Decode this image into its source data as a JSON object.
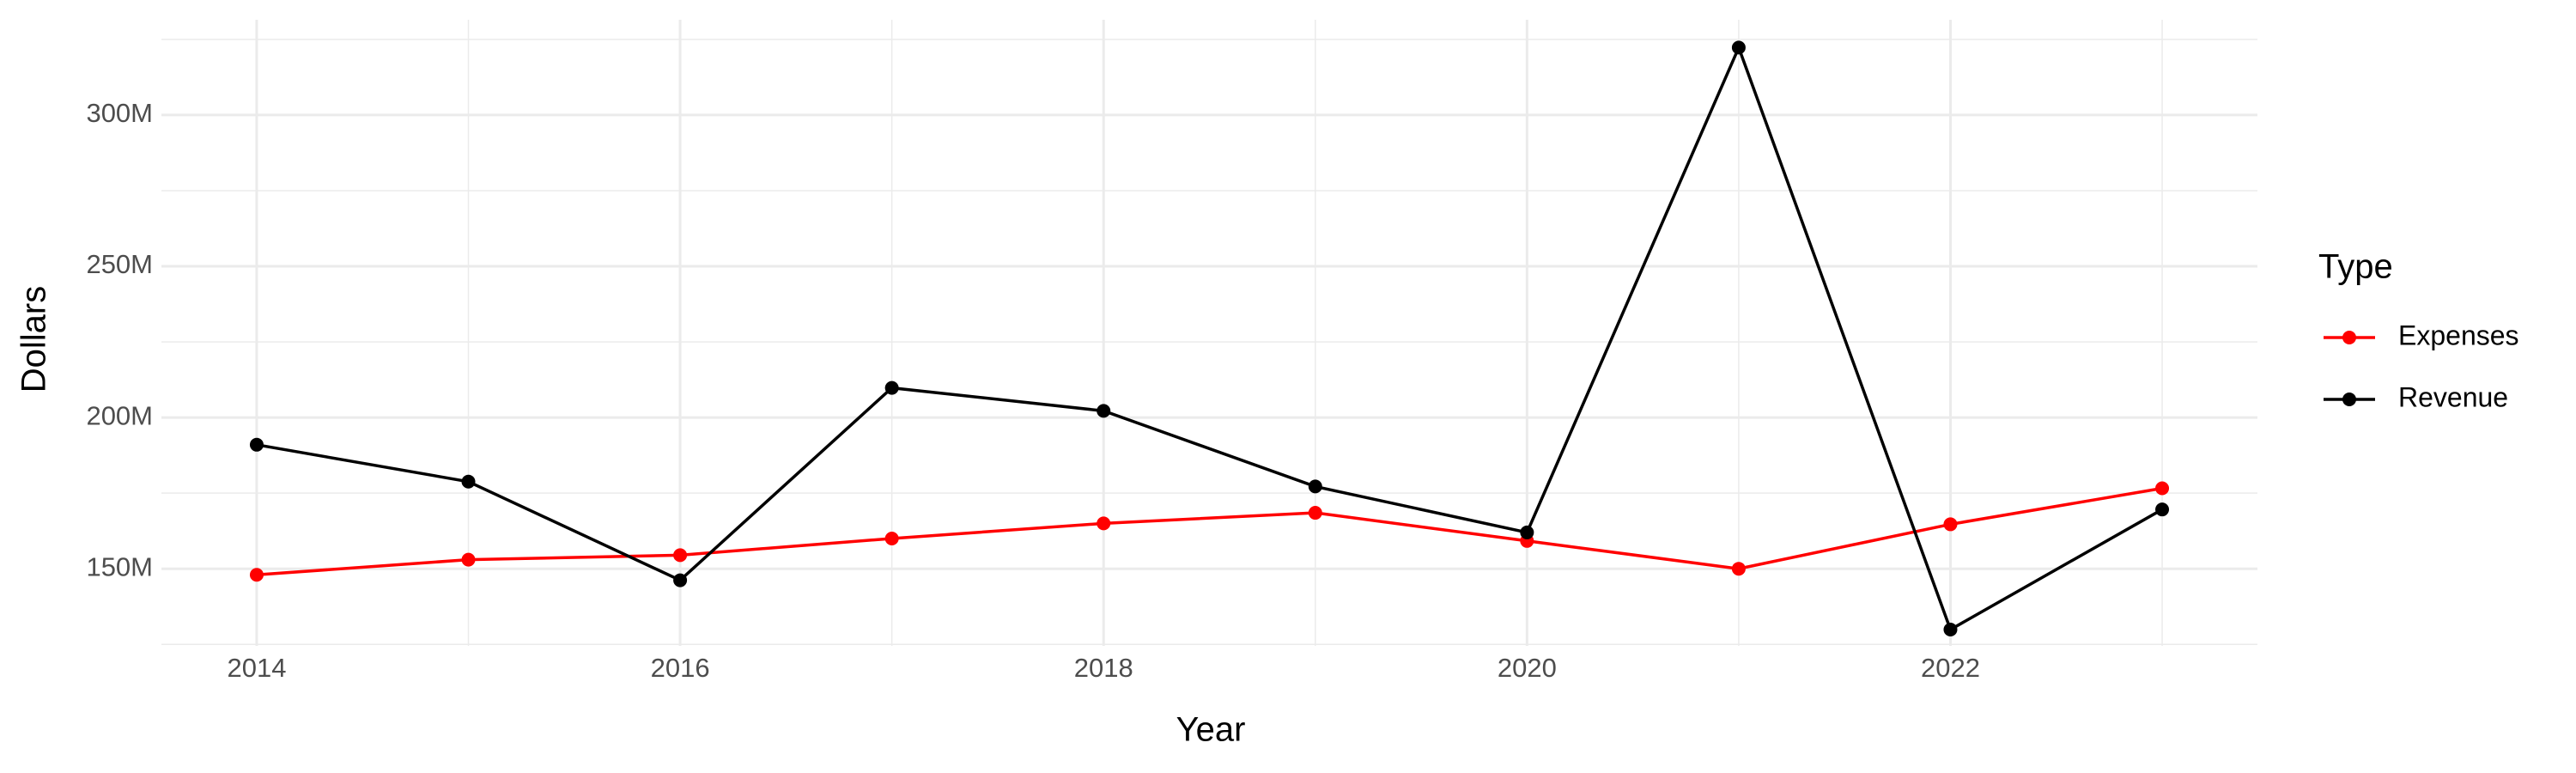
{
  "chart_data": {
    "type": "line",
    "x_label": "Year",
    "y_label": "Dollars",
    "x": [
      2014,
      2015,
      2016,
      2017,
      2018,
      2019,
      2020,
      2021,
      2022,
      2023
    ],
    "series": [
      {
        "name": "Expenses",
        "color": "#ff0000",
        "values": [
          148000000,
          153000000,
          154500000,
          160000000,
          165000000,
          168500000,
          159200000,
          150000000,
          164700000,
          176600000
        ]
      },
      {
        "name": "Revenue",
        "color": "#000000",
        "values": [
          191000000,
          178800000,
          146200000,
          209800000,
          202200000,
          177200000,
          162000000,
          322300000,
          129900000,
          169600000
        ]
      }
    ],
    "xlim": [
      2013.55,
      2023.45
    ],
    "xticks": [
      2014,
      2016,
      2018,
      2020,
      2022
    ],
    "ylim": [
      124500000,
      331500000
    ],
    "yticks": [
      {
        "value": 150000000,
        "label": "150M"
      },
      {
        "value": 200000000,
        "label": "200M"
      },
      {
        "value": 250000000,
        "label": "250M"
      },
      {
        "value": 300000000,
        "label": "300M"
      }
    ],
    "grid": true,
    "legend_title": "Type",
    "legend_position": "right"
  }
}
